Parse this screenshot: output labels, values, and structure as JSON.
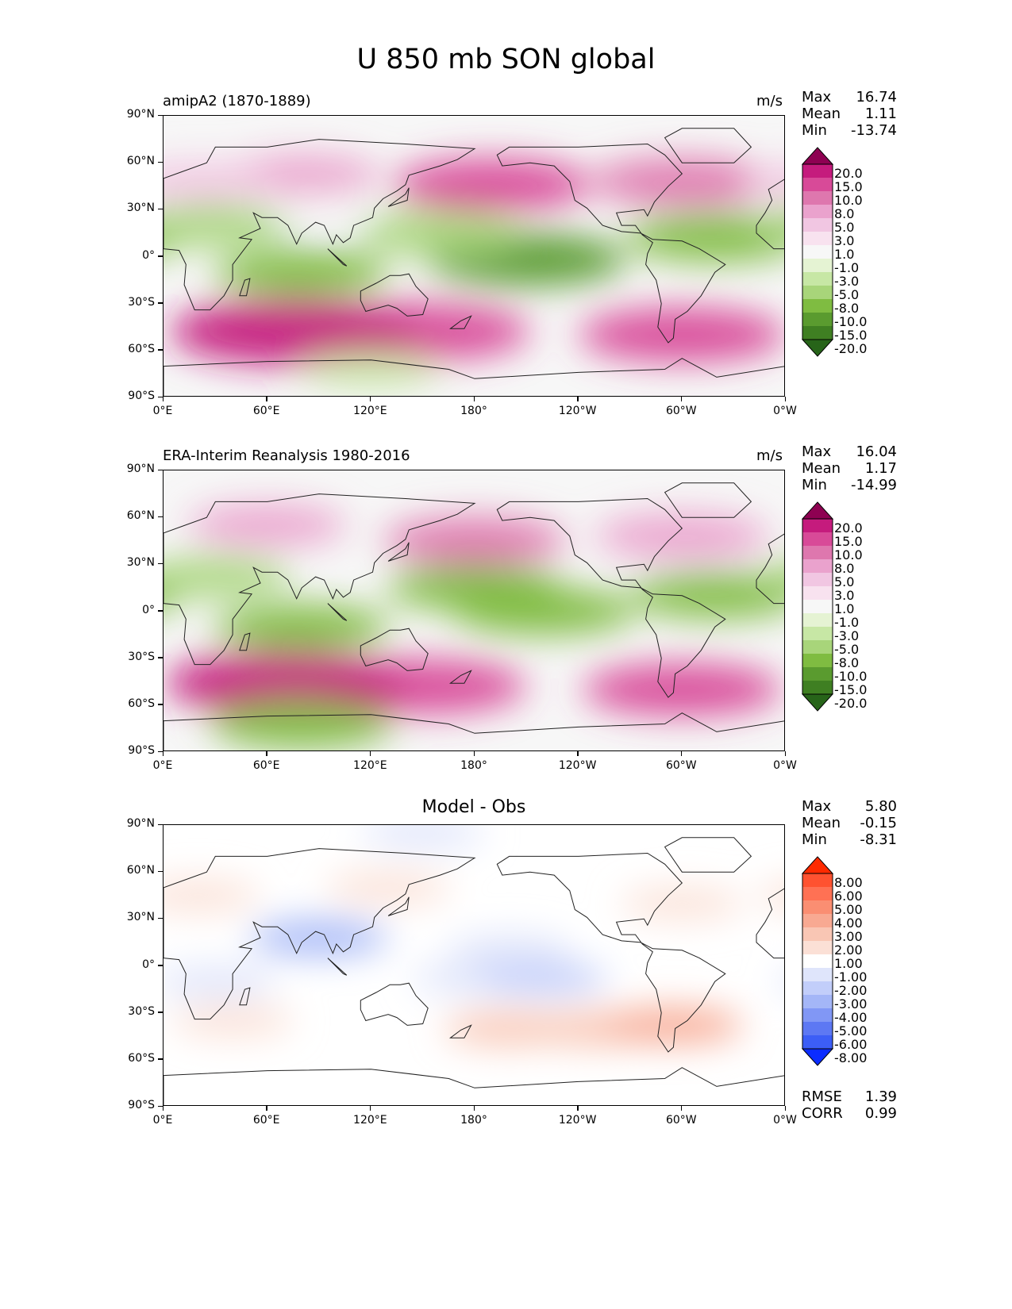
{
  "chart_data": {
    "type": "contour-map",
    "title": "U 850 mb SON global",
    "x_ticks": [
      "0°E",
      "60°E",
      "120°E",
      "180°",
      "120°W",
      "60°W",
      "0°W"
    ],
    "y_ticks": [
      "90°N",
      "60°N",
      "30°N",
      "0°",
      "30°S",
      "60°S",
      "90°S"
    ],
    "panels": [
      {
        "name": "model",
        "left_title": "amipA2 (1870-1889)",
        "units": "m/s",
        "center_title": "",
        "stats": [
          {
            "label": "Max",
            "value": "16.74"
          },
          {
            "label": "Mean",
            "value": "1.11"
          },
          {
            "label": "Min",
            "value": "-13.74"
          }
        ],
        "extra_stats": [],
        "colorbar_levels": [
          "20.0",
          "15.0",
          "10.0",
          "8.0",
          "5.0",
          "3.0",
          "1.0",
          "-1.0",
          "-3.0",
          "-5.0",
          "-8.0",
          "-10.0",
          "-15.0",
          "-20.0"
        ],
        "colorbar_colors": [
          "#8e0152",
          "#c51b7d",
          "#d84a98",
          "#de77ae",
          "#eaa2cd",
          "#f1c6e2",
          "#f8e2ef",
          "#f7f7f7",
          "#e5f3d3",
          "#c7e7a5",
          "#a8d57a",
          "#7fbc41",
          "#5a9b2f",
          "#3f7f22",
          "#276419"
        ],
        "features": [
          {
            "lat": -48,
            "lon": 150,
            "value": 13
          },
          {
            "lat": -48,
            "lon": 75,
            "value": 17
          },
          {
            "lat": -50,
            "lon": 300,
            "value": 12
          },
          {
            "lat": 46,
            "lon": 190,
            "value": 11
          },
          {
            "lat": 48,
            "lon": 300,
            "value": 9
          },
          {
            "lat": 52,
            "lon": 80,
            "value": 6
          },
          {
            "lat": 48,
            "lon": 20,
            "value": 5
          },
          {
            "lat": -2,
            "lon": 210,
            "value": -11
          },
          {
            "lat": -10,
            "lon": 80,
            "value": -8
          },
          {
            "lat": 12,
            "lon": 320,
            "value": -9
          },
          {
            "lat": 15,
            "lon": 160,
            "value": -7
          },
          {
            "lat": 20,
            "lon": 30,
            "value": -6
          },
          {
            "lat": -72,
            "lon": 120,
            "value": -3
          },
          {
            "lat": 30,
            "lon": 90,
            "value": 0
          }
        ]
      },
      {
        "name": "obs",
        "left_title": "ERA-Interim Reanalysis 1980-2016",
        "units": "m/s",
        "center_title": "",
        "stats": [
          {
            "label": "Max",
            "value": "16.04"
          },
          {
            "label": "Mean",
            "value": "1.17"
          },
          {
            "label": "Min",
            "value": "-14.99"
          }
        ],
        "extra_stats": [],
        "colorbar_levels": [
          "20.0",
          "15.0",
          "10.0",
          "8.0",
          "5.0",
          "3.0",
          "1.0",
          "-1.0",
          "-3.0",
          "-5.0",
          "-8.0",
          "-10.0",
          "-15.0",
          "-20.0"
        ],
        "colorbar_colors": [
          "#8e0152",
          "#c51b7d",
          "#d84a98",
          "#de77ae",
          "#eaa2cd",
          "#f1c6e2",
          "#f8e2ef",
          "#f7f7f7",
          "#e5f3d3",
          "#c7e7a5",
          "#a8d57a",
          "#7fbc41",
          "#5a9b2f",
          "#3f7f22",
          "#276419"
        ],
        "features": [
          {
            "lat": -48,
            "lon": 150,
            "value": 12
          },
          {
            "lat": -46,
            "lon": 70,
            "value": 16
          },
          {
            "lat": -50,
            "lon": 300,
            "value": 11
          },
          {
            "lat": 45,
            "lon": 180,
            "value": 9
          },
          {
            "lat": 48,
            "lon": 300,
            "value": 8
          },
          {
            "lat": 55,
            "lon": 60,
            "value": 6
          },
          {
            "lat": 0,
            "lon": 220,
            "value": -9
          },
          {
            "lat": -10,
            "lon": 80,
            "value": -8
          },
          {
            "lat": 15,
            "lon": 180,
            "value": -8
          },
          {
            "lat": 10,
            "lon": 320,
            "value": -8
          },
          {
            "lat": -72,
            "lon": 80,
            "value": -9
          },
          {
            "lat": 22,
            "lon": 30,
            "value": -5
          }
        ]
      },
      {
        "name": "difference",
        "left_title": "",
        "units": "",
        "center_title": "Model - Obs",
        "stats": [
          {
            "label": "Max",
            "value": "5.80"
          },
          {
            "label": "Mean",
            "value": "-0.15"
          },
          {
            "label": "Min",
            "value": "-8.31"
          }
        ],
        "extra_stats": [
          {
            "label": "RMSE",
            "value": "1.39"
          },
          {
            "label": "CORR",
            "value": "0.99"
          }
        ],
        "colorbar_levels": [
          "8.00",
          "6.00",
          "5.00",
          "4.00",
          "3.00",
          "2.00",
          "1.00",
          "-1.00",
          "-2.00",
          "-3.00",
          "-4.00",
          "-5.00",
          "-6.00",
          "-8.00"
        ],
        "colorbar_colors": [
          "#ff2a00",
          "#ff5230",
          "#ff7154",
          "#fa8e72",
          "#f8a992",
          "#f9c6b4",
          "#fbe0d6",
          "#ffffff",
          "#dfe5fb",
          "#c2cefa",
          "#a4b6f7",
          "#8197f5",
          "#5d78f3",
          "#3c5ef6",
          "#0b2cff"
        ],
        "features": [
          {
            "lat": -40,
            "lon": 200,
            "value": 2.5
          },
          {
            "lat": -40,
            "lon": 250,
            "value": 3
          },
          {
            "lat": -35,
            "lon": 40,
            "value": 1.5
          },
          {
            "lat": -38,
            "lon": 295,
            "value": 3.5
          },
          {
            "lat": 50,
            "lon": 130,
            "value": 1.8
          },
          {
            "lat": 45,
            "lon": 20,
            "value": 1.6
          },
          {
            "lat": 40,
            "lon": 300,
            "value": 1.5
          },
          {
            "lat": 18,
            "lon": 90,
            "value": -3.5
          },
          {
            "lat": -8,
            "lon": 180,
            "value": -1.8
          },
          {
            "lat": -8,
            "lon": 220,
            "value": -2
          },
          {
            "lat": 10,
            "lon": 200,
            "value": -1.5
          },
          {
            "lat": 85,
            "lon": 150,
            "value": -1.5
          },
          {
            "lat": -10,
            "lon": 30,
            "value": -1.6
          }
        ]
      }
    ]
  }
}
